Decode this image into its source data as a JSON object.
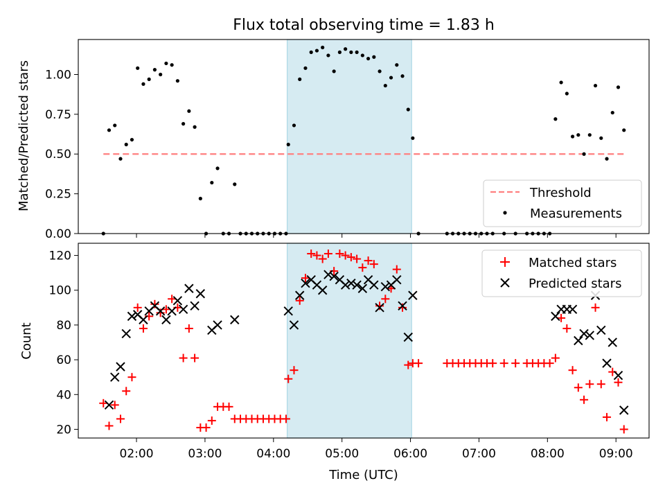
{
  "chart_data": {
    "title": "Flux total observing time = 1.83 h",
    "highlight_window": [
      "04:12",
      "06:01"
    ],
    "highlight_color": "#add8e6",
    "panels": [
      {
        "type": "scatter",
        "ylabel": "Matched/Predicted stars",
        "ylim": [
          0,
          1.22
        ],
        "yticks": [
          "0.00",
          "0.25",
          "0.50",
          "0.75",
          "1.00"
        ],
        "legend_position": "lower-right",
        "threshold": {
          "name": "Threshold",
          "value": 0.5,
          "x_range": [
            "01:31",
            "09:07"
          ],
          "color": "#ff7f7f",
          "style": "dashed"
        },
        "series": [
          {
            "name": "Measurements",
            "marker": "dot",
            "color": "#000000",
            "points": [
              [
                "01:31",
                0.0
              ],
              [
                "01:36",
                0.65
              ],
              [
                "01:41",
                0.68
              ],
              [
                "01:46",
                0.47
              ],
              [
                "01:51",
                0.56
              ],
              [
                "01:56",
                0.59
              ],
              [
                "02:01",
                1.04
              ],
              [
                "02:06",
                0.94
              ],
              [
                "02:11",
                0.97
              ],
              [
                "02:16",
                1.03
              ],
              [
                "02:21",
                1.0
              ],
              [
                "02:26",
                1.07
              ],
              [
                "02:31",
                1.06
              ],
              [
                "02:36",
                0.96
              ],
              [
                "02:41",
                0.69
              ],
              [
                "02:46",
                0.77
              ],
              [
                "02:51",
                0.67
              ],
              [
                "02:56",
                0.22
              ],
              [
                "03:01",
                0.0
              ],
              [
                "03:06",
                0.32
              ],
              [
                "03:11",
                0.41
              ],
              [
                "03:16",
                0.0
              ],
              [
                "03:21",
                0.0
              ],
              [
                "03:26",
                0.31
              ],
              [
                "03:31",
                0.0
              ],
              [
                "03:36",
                0.0
              ],
              [
                "03:41",
                0.0
              ],
              [
                "03:46",
                0.0
              ],
              [
                "03:51",
                0.0
              ],
              [
                "03:56",
                0.0
              ],
              [
                "04:01",
                0.0
              ],
              [
                "04:06",
                0.0
              ],
              [
                "04:11",
                0.0
              ],
              [
                "04:13",
                0.56
              ],
              [
                "04:18",
                0.68
              ],
              [
                "04:23",
                0.97
              ],
              [
                "04:28",
                1.04
              ],
              [
                "04:33",
                1.14
              ],
              [
                "04:38",
                1.15
              ],
              [
                "04:43",
                1.17
              ],
              [
                "04:48",
                1.12
              ],
              [
                "04:53",
                1.02
              ],
              [
                "04:58",
                1.14
              ],
              [
                "05:03",
                1.16
              ],
              [
                "05:08",
                1.14
              ],
              [
                "05:13",
                1.14
              ],
              [
                "05:18",
                1.12
              ],
              [
                "05:23",
                1.1
              ],
              [
                "05:28",
                1.11
              ],
              [
                "05:33",
                1.02
              ],
              [
                "05:38",
                0.93
              ],
              [
                "05:43",
                0.98
              ],
              [
                "05:48",
                1.06
              ],
              [
                "05:53",
                0.99
              ],
              [
                "05:58",
                0.78
              ],
              [
                "06:02",
                0.6
              ],
              [
                "06:07",
                0.0
              ],
              [
                "06:32",
                0.0
              ],
              [
                "06:37",
                0.0
              ],
              [
                "06:42",
                0.0
              ],
              [
                "06:47",
                0.0
              ],
              [
                "06:52",
                0.0
              ],
              [
                "06:57",
                0.0
              ],
              [
                "07:02",
                0.0
              ],
              [
                "07:07",
                0.0
              ],
              [
                "07:12",
                0.0
              ],
              [
                "07:22",
                0.0
              ],
              [
                "07:32",
                0.0
              ],
              [
                "07:42",
                0.0
              ],
              [
                "07:47",
                0.0
              ],
              [
                "07:52",
                0.0
              ],
              [
                "07:57",
                0.0
              ],
              [
                "08:02",
                0.0
              ],
              [
                "08:07",
                0.72
              ],
              [
                "08:12",
                0.95
              ],
              [
                "08:17",
                0.88
              ],
              [
                "08:22",
                0.61
              ],
              [
                "08:27",
                0.62
              ],
              [
                "08:32",
                0.5
              ],
              [
                "08:37",
                0.62
              ],
              [
                "08:42",
                0.93
              ],
              [
                "08:47",
                0.6
              ],
              [
                "08:52",
                0.47
              ],
              [
                "08:57",
                0.76
              ],
              [
                "09:02",
                0.92
              ],
              [
                "09:07",
                0.65
              ]
            ]
          }
        ]
      },
      {
        "type": "scatter",
        "ylabel": "Count",
        "xlabel": "Time (UTC)",
        "ylim": [
          15,
          127
        ],
        "yticks": [
          "20",
          "40",
          "60",
          "80",
          "100",
          "120"
        ],
        "xticks": [
          "02:00",
          "03:00",
          "04:00",
          "05:00",
          "06:00",
          "07:00",
          "08:00",
          "09:00"
        ],
        "xlim": [
          "01:09",
          "09:29"
        ],
        "legend_position": "upper-right",
        "series": [
          {
            "name": "Matched stars",
            "marker": "plus",
            "color": "#ff0000",
            "points": [
              [
                "01:31",
                35
              ],
              [
                "01:36",
                22
              ],
              [
                "01:41",
                34
              ],
              [
                "01:46",
                26
              ],
              [
                "01:51",
                42
              ],
              [
                "01:56",
                50
              ],
              [
                "02:01",
                90
              ],
              [
                "02:06",
                78
              ],
              [
                "02:11",
                85
              ],
              [
                "02:16",
                92
              ],
              [
                "02:21",
                87
              ],
              [
                "02:26",
                89
              ],
              [
                "02:31",
                95
              ],
              [
                "02:36",
                90
              ],
              [
                "02:41",
                61
              ],
              [
                "02:46",
                78
              ],
              [
                "02:51",
                61
              ],
              [
                "02:56",
                21
              ],
              [
                "03:01",
                21
              ],
              [
                "03:06",
                25
              ],
              [
                "03:11",
                33
              ],
              [
                "03:16",
                33
              ],
              [
                "03:21",
                33
              ],
              [
                "03:26",
                26
              ],
              [
                "03:31",
                26
              ],
              [
                "03:36",
                26
              ],
              [
                "03:41",
                26
              ],
              [
                "03:46",
                26
              ],
              [
                "03:51",
                26
              ],
              [
                "03:56",
                26
              ],
              [
                "04:01",
                26
              ],
              [
                "04:06",
                26
              ],
              [
                "04:11",
                26
              ],
              [
                "04:13",
                49
              ],
              [
                "04:18",
                54
              ],
              [
                "04:23",
                94
              ],
              [
                "04:28",
                107
              ],
              [
                "04:33",
                121
              ],
              [
                "04:38",
                120
              ],
              [
                "04:43",
                118
              ],
              [
                "04:48",
                121
              ],
              [
                "04:53",
                111
              ],
              [
                "04:58",
                121
              ],
              [
                "05:03",
                120
              ],
              [
                "05:08",
                119
              ],
              [
                "05:13",
                118
              ],
              [
                "05:18",
                113
              ],
              [
                "05:23",
                117
              ],
              [
                "05:28",
                115
              ],
              [
                "05:33",
                91
              ],
              [
                "05:38",
                95
              ],
              [
                "05:43",
                101
              ],
              [
                "05:48",
                112
              ],
              [
                "05:53",
                90
              ],
              [
                "05:58",
                57
              ],
              [
                "06:02",
                58
              ],
              [
                "06:07",
                58
              ],
              [
                "06:32",
                58
              ],
              [
                "06:37",
                58
              ],
              [
                "06:42",
                58
              ],
              [
                "06:47",
                58
              ],
              [
                "06:52",
                58
              ],
              [
                "06:57",
                58
              ],
              [
                "07:02",
                58
              ],
              [
                "07:07",
                58
              ],
              [
                "07:12",
                58
              ],
              [
                "07:22",
                58
              ],
              [
                "07:32",
                58
              ],
              [
                "07:42",
                58
              ],
              [
                "07:47",
                58
              ],
              [
                "07:52",
                58
              ],
              [
                "07:57",
                58
              ],
              [
                "08:02",
                58
              ],
              [
                "08:07",
                61
              ],
              [
                "08:12",
                84
              ],
              [
                "08:17",
                78
              ],
              [
                "08:22",
                54
              ],
              [
                "08:27",
                44
              ],
              [
                "08:32",
                37
              ],
              [
                "08:37",
                46
              ],
              [
                "08:42",
                90
              ],
              [
                "08:47",
                46
              ],
              [
                "08:52",
                27
              ],
              [
                "08:57",
                53
              ],
              [
                "09:02",
                47
              ],
              [
                "09:07",
                20
              ]
            ]
          },
          {
            "name": "Predicted stars",
            "marker": "cross",
            "color": "#000000",
            "points": [
              [
                "01:36",
                34
              ],
              [
                "01:41",
                50
              ],
              [
                "01:46",
                56
              ],
              [
                "01:51",
                75
              ],
              [
                "01:56",
                85
              ],
              [
                "02:01",
                86
              ],
              [
                "02:06",
                83
              ],
              [
                "02:11",
                88
              ],
              [
                "02:16",
                91
              ],
              [
                "02:21",
                88
              ],
              [
                "02:26",
                83
              ],
              [
                "02:31",
                88
              ],
              [
                "02:36",
                94
              ],
              [
                "02:41",
                89
              ],
              [
                "02:46",
                101
              ],
              [
                "02:51",
                91
              ],
              [
                "02:56",
                98
              ],
              [
                "03:06",
                77
              ],
              [
                "03:11",
                80
              ],
              [
                "03:26",
                83
              ],
              [
                "04:13",
                88
              ],
              [
                "04:18",
                80
              ],
              [
                "04:23",
                97
              ],
              [
                "04:28",
                104
              ],
              [
                "04:33",
                106
              ],
              [
                "04:38",
                103
              ],
              [
                "04:43",
                100
              ],
              [
                "04:48",
                109
              ],
              [
                "04:53",
                108
              ],
              [
                "04:58",
                106
              ],
              [
                "05:03",
                103
              ],
              [
                "05:08",
                104
              ],
              [
                "05:13",
                103
              ],
              [
                "05:18",
                101
              ],
              [
                "05:23",
                106
              ],
              [
                "05:28",
                103
              ],
              [
                "05:33",
                90
              ],
              [
                "05:38",
                102
              ],
              [
                "05:43",
                103
              ],
              [
                "05:48",
                106
              ],
              [
                "05:53",
                91
              ],
              [
                "05:58",
                73
              ],
              [
                "06:02",
                97
              ],
              [
                "08:07",
                85
              ],
              [
                "08:12",
                89
              ],
              [
                "08:17",
                89
              ],
              [
                "08:22",
                89
              ],
              [
                "08:27",
                71
              ],
              [
                "08:32",
                75
              ],
              [
                "08:37",
                74
              ],
              [
                "08:42",
                97
              ],
              [
                "08:47",
                77
              ],
              [
                "08:52",
                58
              ],
              [
                "08:57",
                70
              ],
              [
                "09:02",
                51
              ],
              [
                "09:07",
                31
              ]
            ]
          }
        ]
      }
    ]
  }
}
